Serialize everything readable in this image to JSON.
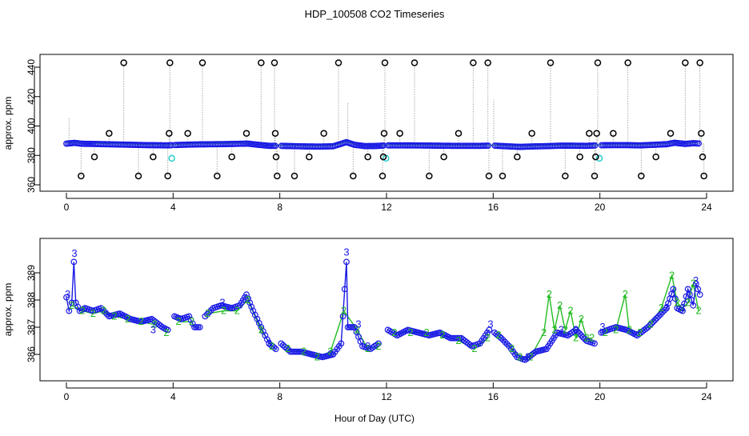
{
  "chart_data": [
    {
      "type": "scatter",
      "title": "HDP_100508  CO2 Timeseries",
      "xlabel": "",
      "ylabel": "approx. ppm",
      "xlim": [
        0,
        24
      ],
      "ylim": [
        360,
        445
      ],
      "xticks": [
        0,
        4,
        8,
        12,
        16,
        20,
        24
      ],
      "yticks": [
        360,
        380,
        400,
        420,
        440
      ],
      "baseline_points": [
        [
          0.0,
          388.0
        ],
        [
          0.3,
          388.5
        ],
        [
          0.6,
          387.9
        ],
        [
          1.0,
          387.8
        ],
        [
          1.5,
          387.6
        ],
        [
          2.0,
          387.4
        ],
        [
          2.5,
          387.2
        ],
        [
          3.0,
          387.0
        ],
        [
          3.5,
          386.9
        ],
        [
          3.8,
          386.8
        ],
        [
          4.0,
          387.0
        ],
        [
          4.5,
          387.3
        ],
        [
          5.0,
          387.5
        ],
        [
          5.5,
          387.6
        ],
        [
          6.0,
          387.7
        ],
        [
          6.5,
          387.9
        ],
        [
          6.8,
          388.0
        ],
        [
          7.2,
          387.2
        ],
        [
          7.6,
          386.5
        ],
        [
          8.0,
          386.5
        ],
        [
          8.5,
          386.3
        ],
        [
          9.0,
          386.1
        ],
        [
          9.5,
          386.0
        ],
        [
          10.0,
          386.2
        ],
        [
          10.5,
          389.0
        ],
        [
          10.8,
          387.2
        ],
        [
          11.2,
          386.3
        ],
        [
          11.6,
          386.4
        ],
        [
          12.0,
          386.8
        ],
        [
          12.5,
          386.8
        ],
        [
          13.0,
          386.8
        ],
        [
          13.5,
          386.7
        ],
        [
          14.0,
          386.6
        ],
        [
          14.5,
          386.5
        ],
        [
          15.0,
          386.5
        ],
        [
          15.5,
          386.5
        ],
        [
          16.0,
          386.7
        ],
        [
          16.5,
          386.2
        ],
        [
          17.0,
          385.8
        ],
        [
          17.5,
          386.1
        ],
        [
          18.0,
          386.3
        ],
        [
          18.5,
          386.6
        ],
        [
          19.0,
          386.6
        ],
        [
          19.5,
          386.5
        ],
        [
          20.0,
          386.9
        ],
        [
          20.5,
          387.0
        ],
        [
          21.0,
          387.0
        ],
        [
          21.5,
          386.8
        ],
        [
          22.0,
          387.2
        ],
        [
          22.5,
          387.6
        ],
        [
          22.8,
          388.6
        ],
        [
          23.2,
          387.8
        ],
        [
          23.5,
          388.3
        ],
        [
          23.7,
          388.1
        ]
      ],
      "gaps": [
        [
          3.95,
          4.05
        ],
        [
          7.85,
          8.05
        ],
        [
          11.9,
          12.05
        ],
        [
          15.85,
          16.05
        ],
        [
          19.85,
          20.05
        ]
      ],
      "cyan_points": [
        [
          3.95,
          378
        ],
        [
          11.98,
          378
        ],
        [
          19.98,
          378
        ]
      ],
      "spikes": [
        {
          "x": 0.1,
          "y": 406,
          "mark": false
        },
        {
          "x": 0.55,
          "y": 366,
          "mark": true
        },
        {
          "x": 1.05,
          "y": 379,
          "mark": true
        },
        {
          "x": 1.6,
          "y": 395,
          "mark": true
        },
        {
          "x": 2.15,
          "y": 443,
          "mark": true
        },
        {
          "x": 2.7,
          "y": 366,
          "mark": true
        },
        {
          "x": 3.25,
          "y": 379,
          "mark": true
        },
        {
          "x": 3.8,
          "y": 366,
          "mark": true
        },
        {
          "x": 3.85,
          "y": 395,
          "mark": true
        },
        {
          "x": 3.88,
          "y": 443,
          "mark": true
        },
        {
          "x": 4.55,
          "y": 395,
          "mark": true
        },
        {
          "x": 5.1,
          "y": 443,
          "mark": true
        },
        {
          "x": 5.65,
          "y": 366,
          "mark": true
        },
        {
          "x": 6.2,
          "y": 379,
          "mark": true
        },
        {
          "x": 6.75,
          "y": 395,
          "mark": true
        },
        {
          "x": 7.3,
          "y": 443,
          "mark": true
        },
        {
          "x": 7.8,
          "y": 443,
          "mark": true
        },
        {
          "x": 7.83,
          "y": 395,
          "mark": true
        },
        {
          "x": 7.86,
          "y": 379,
          "mark": true
        },
        {
          "x": 7.9,
          "y": 366,
          "mark": true
        },
        {
          "x": 8.55,
          "y": 366,
          "mark": true
        },
        {
          "x": 9.1,
          "y": 379,
          "mark": true
        },
        {
          "x": 9.65,
          "y": 395,
          "mark": true
        },
        {
          "x": 10.2,
          "y": 443,
          "mark": true
        },
        {
          "x": 10.55,
          "y": 416,
          "mark": false
        },
        {
          "x": 10.75,
          "y": 366,
          "mark": true
        },
        {
          "x": 11.3,
          "y": 379,
          "mark": true
        },
        {
          "x": 11.85,
          "y": 366,
          "mark": true
        },
        {
          "x": 11.88,
          "y": 379,
          "mark": true
        },
        {
          "x": 11.91,
          "y": 395,
          "mark": true
        },
        {
          "x": 11.94,
          "y": 443,
          "mark": true
        },
        {
          "x": 12.5,
          "y": 395,
          "mark": true
        },
        {
          "x": 13.05,
          "y": 443,
          "mark": true
        },
        {
          "x": 13.6,
          "y": 366,
          "mark": true
        },
        {
          "x": 14.15,
          "y": 379,
          "mark": true
        },
        {
          "x": 14.7,
          "y": 395,
          "mark": true
        },
        {
          "x": 15.25,
          "y": 443,
          "mark": true
        },
        {
          "x": 15.8,
          "y": 443,
          "mark": true
        },
        {
          "x": 15.84,
          "y": 366,
          "mark": true
        },
        {
          "x": 16.02,
          "y": 418,
          "mark": false
        },
        {
          "x": 16.35,
          "y": 366,
          "mark": true
        },
        {
          "x": 16.9,
          "y": 379,
          "mark": true
        },
        {
          "x": 17.45,
          "y": 395,
          "mark": true
        },
        {
          "x": 18.15,
          "y": 443,
          "mark": true
        },
        {
          "x": 18.7,
          "y": 366,
          "mark": true
        },
        {
          "x": 19.25,
          "y": 379,
          "mark": true
        },
        {
          "x": 19.6,
          "y": 395,
          "mark": true
        },
        {
          "x": 19.8,
          "y": 366,
          "mark": true
        },
        {
          "x": 19.84,
          "y": 379,
          "mark": true
        },
        {
          "x": 19.88,
          "y": 395,
          "mark": true
        },
        {
          "x": 19.92,
          "y": 443,
          "mark": true
        },
        {
          "x": 20.5,
          "y": 395,
          "mark": true
        },
        {
          "x": 21.05,
          "y": 443,
          "mark": true
        },
        {
          "x": 21.55,
          "y": 366,
          "mark": true
        },
        {
          "x": 22.1,
          "y": 379,
          "mark": true
        },
        {
          "x": 22.65,
          "y": 395,
          "mark": true
        },
        {
          "x": 23.2,
          "y": 443,
          "mark": true
        },
        {
          "x": 23.75,
          "y": 443,
          "mark": true
        },
        {
          "x": 23.8,
          "y": 395,
          "mark": true
        },
        {
          "x": 23.85,
          "y": 379,
          "mark": true
        },
        {
          "x": 23.9,
          "y": 366,
          "mark": true
        }
      ],
      "colors": {
        "baseline": "#1a1ae6",
        "spike": "#000000",
        "cyan": "#22cccc",
        "green": "#22bb22",
        "line": "#aaaaaa"
      }
    },
    {
      "type": "line",
      "title": "",
      "xlabel": "Hour of Day (UTC)",
      "ylabel": "approx. ppm",
      "xlim": [
        0,
        24
      ],
      "ylim": [
        385.5,
        389.6
      ],
      "xticks": [
        0,
        4,
        8,
        12,
        16,
        20,
        24
      ],
      "yticks": [
        386,
        387,
        388,
        389
      ],
      "series": [
        {
          "name": "3",
          "color": "#1a1ae6",
          "points": [
            [
              0.0,
              388.1
            ],
            [
              0.1,
              387.6
            ],
            [
              0.2,
              387.9
            ],
            [
              0.28,
              389.4
            ],
            [
              0.35,
              387.9
            ],
            [
              0.5,
              387.6
            ],
            [
              0.7,
              387.7
            ],
            [
              1.0,
              387.6
            ],
            [
              1.3,
              387.7
            ],
            [
              1.6,
              387.4
            ],
            [
              2.0,
              387.5
            ],
            [
              2.4,
              387.3
            ],
            [
              2.8,
              387.2
            ],
            [
              3.2,
              387.3
            ],
            [
              3.6,
              387.0
            ],
            [
              3.8,
              386.9
            ],
            [
              4.05,
              387.4
            ],
            [
              4.3,
              387.3
            ],
            [
              4.6,
              387.4
            ],
            [
              4.8,
              387.0
            ],
            [
              5.0,
              387.0
            ],
            [
              5.2,
              387.4
            ],
            [
              5.5,
              387.7
            ],
            [
              5.8,
              387.8
            ],
            [
              6.2,
              387.7
            ],
            [
              6.5,
              387.8
            ],
            [
              6.75,
              388.2
            ],
            [
              7.0,
              387.6
            ],
            [
              7.3,
              387.0
            ],
            [
              7.6,
              386.4
            ],
            [
              7.85,
              386.2
            ],
            [
              8.05,
              386.4
            ],
            [
              8.4,
              386.1
            ],
            [
              8.8,
              386.1
            ],
            [
              9.2,
              386.0
            ],
            [
              9.6,
              385.9
            ],
            [
              10.0,
              386.0
            ],
            [
              10.3,
              386.4
            ],
            [
              10.5,
              389.4
            ],
            [
              10.55,
              387.0
            ],
            [
              10.8,
              387.0
            ],
            [
              11.1,
              386.3
            ],
            [
              11.4,
              386.2
            ],
            [
              11.7,
              386.4
            ],
            [
              12.05,
              386.9
            ],
            [
              12.4,
              386.7
            ],
            [
              12.8,
              386.9
            ],
            [
              13.2,
              386.8
            ],
            [
              13.6,
              386.7
            ],
            [
              14.0,
              386.8
            ],
            [
              14.4,
              386.6
            ],
            [
              14.8,
              386.6
            ],
            [
              15.2,
              386.3
            ],
            [
              15.5,
              386.4
            ],
            [
              15.85,
              386.9
            ],
            [
              16.05,
              386.8
            ],
            [
              16.3,
              386.6
            ],
            [
              16.6,
              386.3
            ],
            [
              16.9,
              385.9
            ],
            [
              17.2,
              385.8
            ],
            [
              17.6,
              386.1
            ],
            [
              18.0,
              386.2
            ],
            [
              18.4,
              386.8
            ],
            [
              18.8,
              386.7
            ],
            [
              19.1,
              386.9
            ],
            [
              19.5,
              386.5
            ],
            [
              19.8,
              386.4
            ],
            [
              20.05,
              386.8
            ],
            [
              20.3,
              386.9
            ],
            [
              20.6,
              387.0
            ],
            [
              21.0,
              386.9
            ],
            [
              21.4,
              386.7
            ],
            [
              21.8,
              387.0
            ],
            [
              22.2,
              387.4
            ],
            [
              22.5,
              387.7
            ],
            [
              22.75,
              388.4
            ],
            [
              22.9,
              387.7
            ],
            [
              23.1,
              387.6
            ],
            [
              23.3,
              388.4
            ],
            [
              23.5,
              387.8
            ],
            [
              23.6,
              388.6
            ],
            [
              23.75,
              388.2
            ]
          ]
        },
        {
          "name": "2",
          "color": "#22bb22",
          "points": [
            [
              0.2,
              387.8
            ],
            [
              0.6,
              387.6
            ],
            [
              1.0,
              387.5
            ],
            [
              1.4,
              387.6
            ],
            [
              1.8,
              387.4
            ],
            [
              2.3,
              387.3
            ],
            [
              2.8,
              387.2
            ],
            [
              3.3,
              387.1
            ],
            [
              3.75,
              386.8
            ],
            [
              4.2,
              387.2
            ],
            [
              4.7,
              387.2
            ],
            [
              5.3,
              387.5
            ],
            [
              5.9,
              387.6
            ],
            [
              6.4,
              387.6
            ],
            [
              6.8,
              388.0
            ],
            [
              7.3,
              386.9
            ],
            [
              7.7,
              386.3
            ],
            [
              8.3,
              386.2
            ],
            [
              8.9,
              386.1
            ],
            [
              9.4,
              385.9
            ],
            [
              9.9,
              386.1
            ],
            [
              10.4,
              387.6
            ],
            [
              10.9,
              386.9
            ],
            [
              11.3,
              386.2
            ],
            [
              11.7,
              386.3
            ],
            [
              12.3,
              386.8
            ],
            [
              12.9,
              386.8
            ],
            [
              13.5,
              386.8
            ],
            [
              14.1,
              386.7
            ],
            [
              14.7,
              386.5
            ],
            [
              15.3,
              386.2
            ],
            [
              15.8,
              386.6
            ],
            [
              16.2,
              386.7
            ],
            [
              16.7,
              386.2
            ],
            [
              17.0,
              385.9
            ],
            [
              17.4,
              385.9
            ],
            [
              17.9,
              386.8
            ],
            [
              18.1,
              388.2
            ],
            [
              18.3,
              386.9
            ],
            [
              18.5,
              387.8
            ],
            [
              18.7,
              386.9
            ],
            [
              18.9,
              387.6
            ],
            [
              19.1,
              386.6
            ],
            [
              19.3,
              387.3
            ],
            [
              19.5,
              386.6
            ],
            [
              19.7,
              386.6
            ],
            [
              20.2,
              386.8
            ],
            [
              20.6,
              386.9
            ],
            [
              20.95,
              388.2
            ],
            [
              21.1,
              386.9
            ],
            [
              21.5,
              386.8
            ],
            [
              21.9,
              387.1
            ],
            [
              22.3,
              387.7
            ],
            [
              22.7,
              388.9
            ],
            [
              22.9,
              387.9
            ],
            [
              23.1,
              387.7
            ],
            [
              23.3,
              387.9
            ],
            [
              23.5,
              388.6
            ],
            [
              23.7,
              387.6
            ]
          ]
        }
      ],
      "gaps": [
        [
          3.95,
          4.05
        ],
        [
          5.05,
          5.2
        ],
        [
          7.9,
          8.05
        ],
        [
          11.85,
          12.05
        ],
        [
          15.9,
          16.05
        ],
        [
          19.85,
          20.05
        ]
      ]
    }
  ]
}
